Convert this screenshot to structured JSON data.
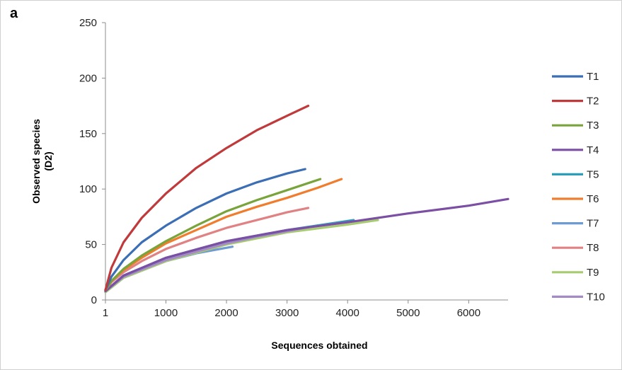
{
  "panel_label": "a",
  "chart_data": {
    "type": "line",
    "xlabel": "Sequences obtained",
    "ylabel": "Observed species (D2)",
    "xlim": [
      1,
      6650
    ],
    "ylim": [
      0,
      250
    ],
    "x_ticks": [
      {
        "value": 1,
        "label": "1"
      },
      {
        "value": 1000,
        "label": "1000"
      },
      {
        "value": 2000,
        "label": "2000"
      },
      {
        "value": 3000,
        "label": "3000"
      },
      {
        "value": 4000,
        "label": "4000"
      },
      {
        "value": 5000,
        "label": "5000"
      },
      {
        "value": 6000,
        "label": "6000"
      }
    ],
    "y_ticks": [
      {
        "value": 0,
        "label": "0"
      },
      {
        "value": 50,
        "label": "50"
      },
      {
        "value": 100,
        "label": "100"
      },
      {
        "value": 150,
        "label": "150"
      },
      {
        "value": 200,
        "label": "200"
      },
      {
        "value": 250,
        "label": "250"
      }
    ],
    "grid": false,
    "legend_position": "right",
    "series": [
      {
        "name": "T1",
        "color": "#3b6eb4",
        "x": [
          1,
          100,
          300,
          600,
          1000,
          1500,
          2000,
          2500,
          3000,
          3300
        ],
        "y": [
          9,
          21,
          36,
          52,
          67,
          83,
          96,
          106,
          114,
          118
        ]
      },
      {
        "name": "T2",
        "color": "#c0393b",
        "x": [
          1,
          100,
          300,
          600,
          1000,
          1500,
          2000,
          2500,
          3000,
          3350
        ],
        "y": [
          9,
          29,
          52,
          74,
          96,
          119,
          137,
          153,
          166,
          175
        ]
      },
      {
        "name": "T3",
        "color": "#79a33b",
        "x": [
          1,
          100,
          300,
          600,
          1000,
          1500,
          2000,
          2500,
          3000,
          3550
        ],
        "y": [
          9,
          17,
          28,
          40,
          53,
          67,
          80,
          90,
          99,
          109
        ]
      },
      {
        "name": "T4",
        "color": "#7b4fa3",
        "x": [
          1,
          300,
          1000,
          2000,
          3000,
          4000,
          5000,
          6000,
          6650
        ],
        "y": [
          8,
          22,
          38,
          53,
          63,
          70,
          78,
          85,
          91
        ]
      },
      {
        "name": "T5",
        "color": "#2e9db7",
        "x": [
          1,
          300,
          1000,
          2000,
          3000,
          4100
        ],
        "y": [
          8,
          22,
          38,
          53,
          63,
          72
        ]
      },
      {
        "name": "T6",
        "color": "#f07d2d",
        "x": [
          1,
          100,
          300,
          600,
          1000,
          1500,
          2000,
          2500,
          3000,
          3500,
          3900
        ],
        "y": [
          9,
          17,
          27,
          38,
          51,
          63,
          75,
          84,
          92,
          101,
          109
        ]
      },
      {
        "name": "T7",
        "color": "#6f9bd3",
        "x": [
          1,
          300,
          1000,
          1500,
          2100
        ],
        "y": [
          7,
          20,
          35,
          42,
          48
        ]
      },
      {
        "name": "T8",
        "color": "#e08283",
        "x": [
          1,
          100,
          300,
          600,
          1000,
          1500,
          2000,
          2500,
          3000,
          3350
        ],
        "y": [
          9,
          16,
          25,
          35,
          46,
          56,
          65,
          72,
          79,
          83
        ]
      },
      {
        "name": "T9",
        "color": "#a6cc6f",
        "x": [
          1,
          300,
          1000,
          2000,
          3000,
          4000,
          4500
        ],
        "y": [
          7,
          20,
          35,
          50,
          61,
          68,
          72
        ]
      },
      {
        "name": "T10",
        "color": "#a58ac6",
        "x": [
          1,
          300,
          1000,
          2000,
          2500,
          3000,
          3500
        ],
        "y": [
          8,
          21,
          36,
          51,
          57,
          62,
          67
        ]
      }
    ]
  }
}
